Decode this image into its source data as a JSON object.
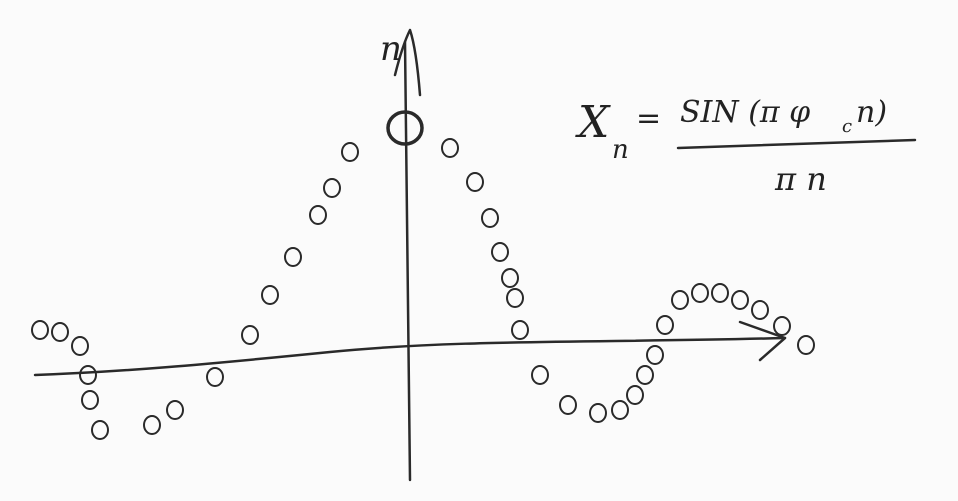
{
  "axis_label": "n",
  "formula": {
    "lhs": "X",
    "lhs_sub": "n",
    "equals": "=",
    "numerator": "SIN (π φ",
    "numerator_sub": "c",
    "numerator_end": "n)",
    "denominator": "π n"
  }
}
